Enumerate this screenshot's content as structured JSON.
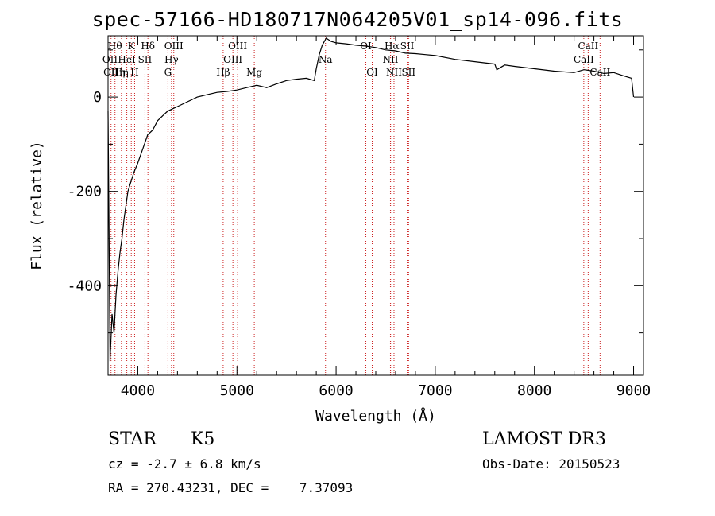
{
  "figure": {
    "title": "spec-57166-HD180717N064205V01_sp14-096.fits"
  },
  "info": {
    "class": "STAR",
    "subclass": "K5",
    "survey": "LAMOST DR3",
    "cz": "cz = -2.7 ± 6.8 km/s",
    "obs_date": "Obs-Date: 20150523",
    "radec": "RA = 270.43231, DEC =    7.37093"
  },
  "colors": {
    "line": "#000000",
    "marker": "#cc2222"
  },
  "chart_data": {
    "type": "line",
    "title": "spec-57166-HD180717N064205V01_sp14-096.fits",
    "xlabel": "Wavelength (Å)",
    "ylabel": "Flux (relative)",
    "xlim": [
      3700,
      9100
    ],
    "ylim": [
      -590,
      130
    ],
    "xticks": [
      4000,
      5000,
      6000,
      7000,
      8000,
      9000
    ],
    "yticks": [
      0,
      -200,
      -400
    ],
    "grid": false,
    "series": [
      {
        "x": [
          3700,
          3720,
          3740,
          3760,
          3780,
          3800,
          3820,
          3840,
          3860,
          3880,
          3900,
          3930,
          3960,
          4000,
          4050,
          4100,
          4150,
          4200,
          4250,
          4300,
          4350,
          4400,
          4500,
          4600,
          4700,
          4800,
          4900,
          5000,
          5100,
          5200,
          5300,
          5400,
          5500,
          5600,
          5700,
          5780,
          5800,
          5830,
          5860,
          5900,
          5950,
          6000,
          6100,
          6200,
          6300,
          6400,
          6500,
          6600,
          6700,
          6800,
          6900,
          7000,
          7200,
          7400,
          7600,
          7620,
          7700,
          7800,
          8000,
          8200,
          8400,
          8500,
          8600,
          8700,
          8800,
          8900,
          8980,
          9000
        ],
        "y": [
          -30,
          -560,
          -460,
          -500,
          -420,
          -370,
          -330,
          -300,
          -260,
          -230,
          -200,
          -180,
          -160,
          -140,
          -110,
          -80,
          -70,
          -50,
          -40,
          -30,
          -25,
          -20,
          -10,
          0,
          5,
          10,
          12,
          15,
          20,
          25,
          20,
          28,
          35,
          38,
          40,
          35,
          60,
          90,
          110,
          125,
          118,
          115,
          113,
          110,
          108,
          105,
          100,
          98,
          93,
          92,
          90,
          88,
          80,
          75,
          70,
          58,
          68,
          65,
          60,
          55,
          52,
          58,
          55,
          50,
          52,
          45,
          40,
          0
        ]
      }
    ],
    "lines": [
      {
        "wl": 3720,
        "label": "OII",
        "row": 1
      },
      {
        "wl": 3730,
        "label": "OII",
        "row": 2
      },
      {
        "wl": 3770,
        "label": "Hθ",
        "row": 0
      },
      {
        "wl": 3800,
        "label": "Hη",
        "row": 2
      },
      {
        "wl": 3835,
        "label": "Hη",
        "row": 2
      },
      {
        "wl": 3889,
        "label": "HeI",
        "row": 1
      },
      {
        "wl": 3934,
        "label": "K",
        "row": 0
      },
      {
        "wl": 3968,
        "label": "H",
        "row": 2
      },
      {
        "wl": 4072,
        "label": "SII",
        "row": 1
      },
      {
        "wl": 4102,
        "label": "Hδ",
        "row": 0
      },
      {
        "wl": 4304,
        "label": "G",
        "row": 2
      },
      {
        "wl": 4340,
        "label": "Hγ",
        "row": 1
      },
      {
        "wl": 4363,
        "label": "OIII",
        "row": 0
      },
      {
        "wl": 4861,
        "label": "Hβ",
        "row": 2
      },
      {
        "wl": 4959,
        "label": "OIII",
        "row": 1
      },
      {
        "wl": 5007,
        "label": "OIII",
        "row": 0
      },
      {
        "wl": 5175,
        "label": "Mg",
        "row": 2
      },
      {
        "wl": 5893,
        "label": "Na",
        "row": 1
      },
      {
        "wl": 6300,
        "label": "OI",
        "row": 0
      },
      {
        "wl": 6364,
        "label": "OI",
        "row": 2
      },
      {
        "wl": 6548,
        "label": "NII",
        "row": 1
      },
      {
        "wl": 6563,
        "label": "Hα",
        "row": 0
      },
      {
        "wl": 6584,
        "label": "NII",
        "row": 2
      },
      {
        "wl": 6717,
        "label": "SII",
        "row": 0
      },
      {
        "wl": 6731,
        "label": "SII",
        "row": 2
      },
      {
        "wl": 8498,
        "label": "CaII",
        "row": 1
      },
      {
        "wl": 8542,
        "label": "CaII",
        "row": 0
      },
      {
        "wl": 8662,
        "label": "CaII",
        "row": 2
      }
    ]
  }
}
